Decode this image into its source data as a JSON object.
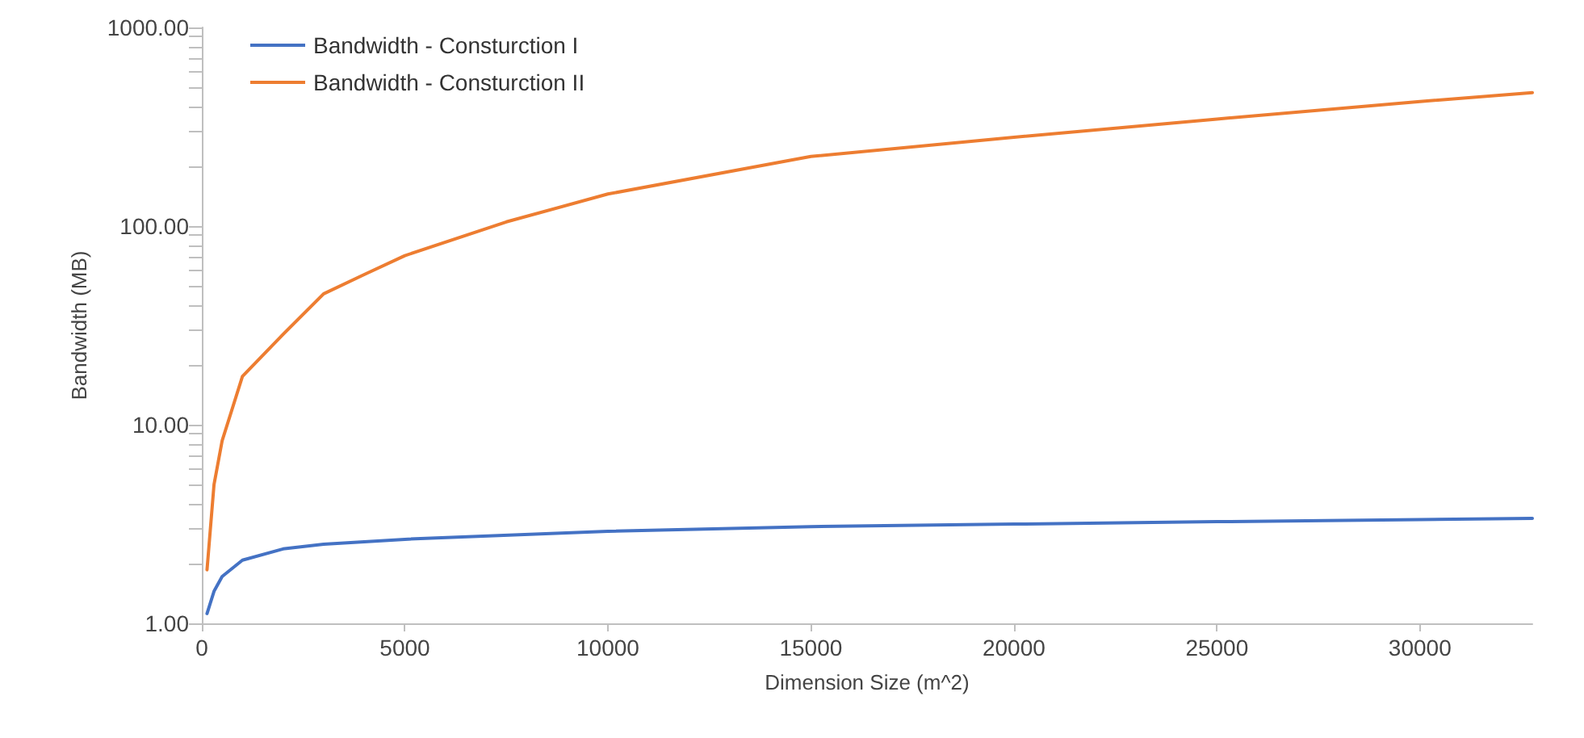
{
  "chart_data": {
    "type": "line",
    "xlabel": "Dimension Size (m^2)",
    "ylabel": "Bandwidth (MB)",
    "log": "y",
    "grid": false,
    "legend": "top left",
    "marker": "none",
    "line_style": "solid",
    "xlim": [
      0,
      32768
    ],
    "xticks": [
      0,
      5000,
      10000,
      15000,
      20000,
      25000,
      30000
    ],
    "ylim": [
      1,
      1000
    ],
    "yticks": [
      {
        "value": 1,
        "label": "1.00"
      },
      {
        "value": 2,
        "label": null
      },
      {
        "value": 3,
        "label": null
      },
      {
        "value": 4,
        "label": null
      },
      {
        "value": 5,
        "label": null
      },
      {
        "value": 6,
        "label": null
      },
      {
        "value": 7,
        "label": null
      },
      {
        "value": 8,
        "label": null
      },
      {
        "value": 9,
        "label": null
      },
      {
        "value": 10,
        "label": "10.00"
      },
      {
        "value": 20,
        "label": null
      },
      {
        "value": 30,
        "label": null
      },
      {
        "value": 40,
        "label": null
      },
      {
        "value": 50,
        "label": null
      },
      {
        "value": 60,
        "label": null
      },
      {
        "value": 70,
        "label": null
      },
      {
        "value": 80,
        "label": null
      },
      {
        "value": 90,
        "label": null
      },
      {
        "value": 100,
        "label": "100.00"
      },
      {
        "value": 200,
        "label": null
      },
      {
        "value": 300,
        "label": null
      },
      {
        "value": 400,
        "label": null
      },
      {
        "value": 500,
        "label": null
      },
      {
        "value": 600,
        "label": null
      },
      {
        "value": 700,
        "label": null
      },
      {
        "value": 800,
        "label": null
      },
      {
        "value": 900,
        "label": null
      },
      {
        "value": 1000,
        "label": "1000.00"
      }
    ],
    "series": [
      {
        "name": "Bandwidth - Consturction I",
        "color": "#4472c4",
        "x": [
          128,
          300,
          500,
          1000,
          2000,
          3000,
          5000,
          10000,
          15000,
          20000,
          25000,
          30000,
          32768
        ],
        "values": [
          1.12,
          1.45,
          1.72,
          2.08,
          2.37,
          2.5,
          2.65,
          2.91,
          3.07,
          3.16,
          3.25,
          3.33,
          3.38
        ]
      },
      {
        "name": "Bandwidth - Consturction II",
        "color": "#ed7d31",
        "x": [
          128,
          300,
          500,
          1000,
          2000,
          3000,
          4000,
          5000,
          7500,
          10000,
          15000,
          20000,
          25000,
          30000,
          32768
        ],
        "values": [
          1.86,
          5,
          8.3,
          17.5,
          28.5,
          45.6,
          57,
          71,
          105,
          145,
          224,
          280,
          346,
          424,
          470
        ]
      }
    ]
  }
}
